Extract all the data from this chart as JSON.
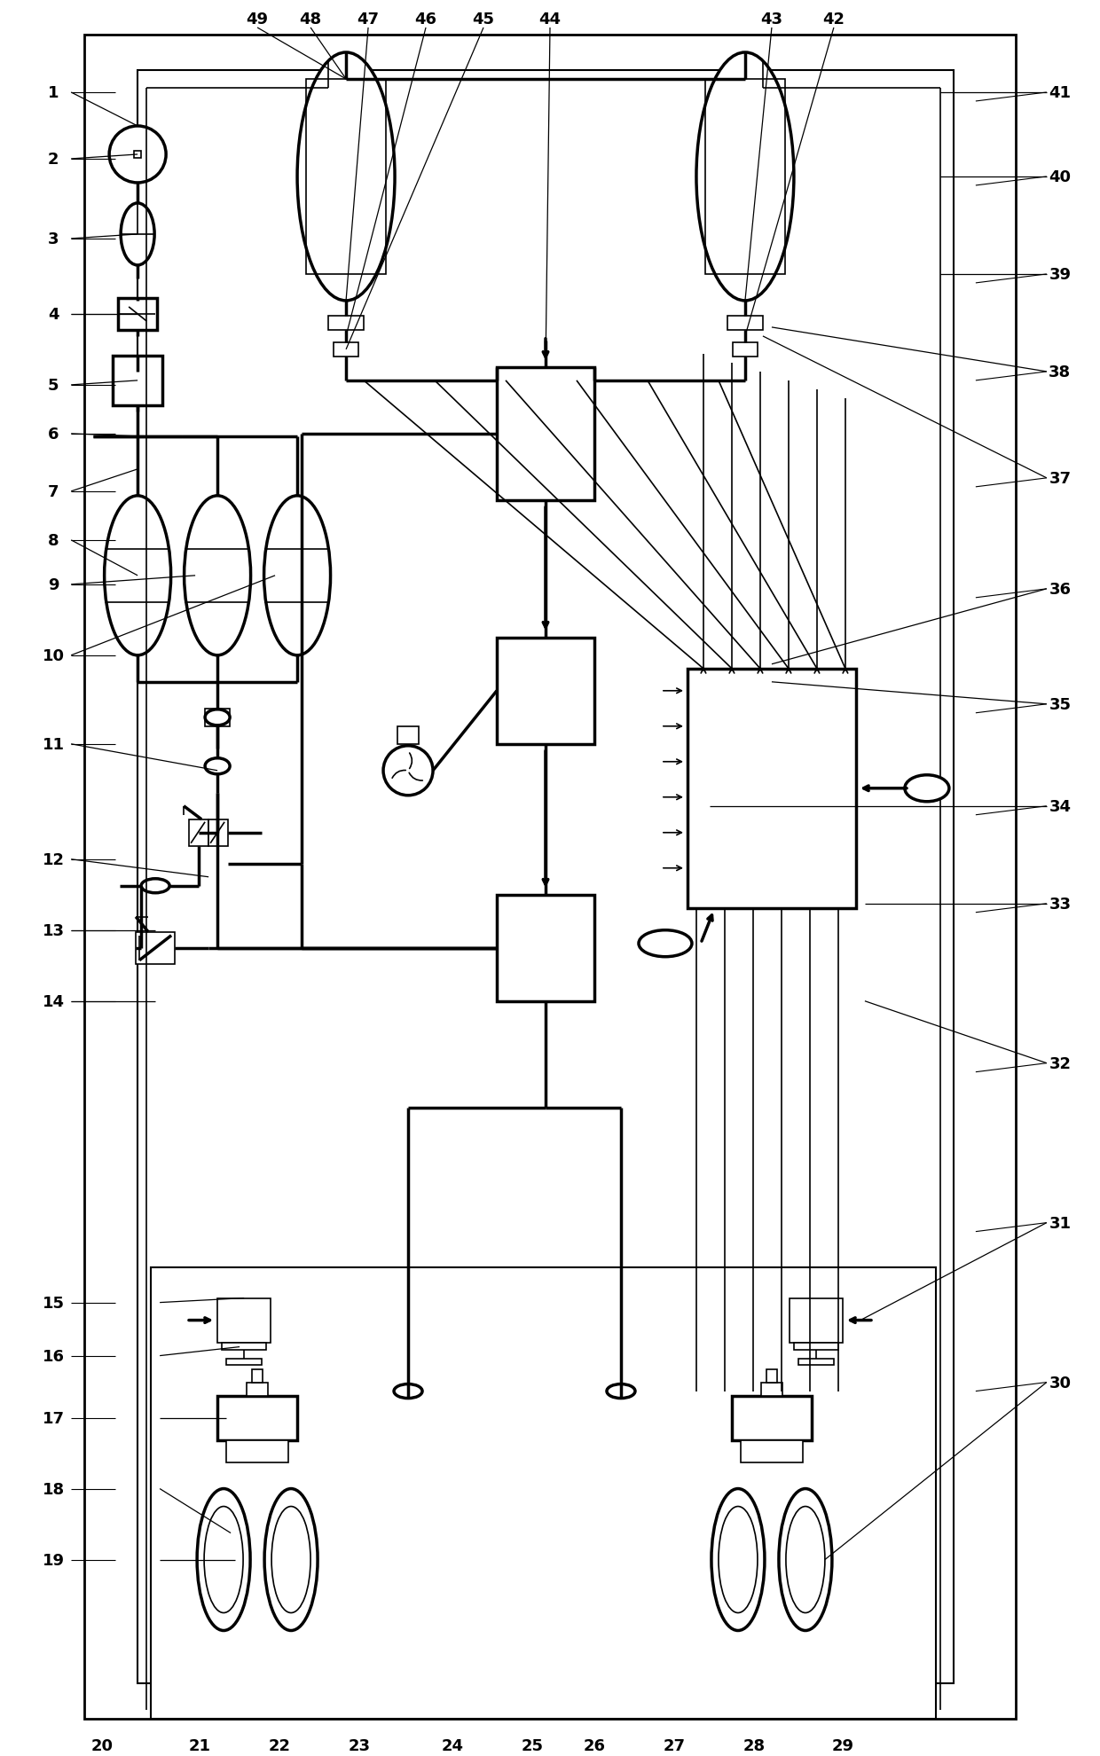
{
  "bg_color": "#ffffff",
  "fig_width": 12.4,
  "fig_height": 19.81,
  "lw_thin": 1.2,
  "lw_med": 2.5,
  "lw_thick": 4.0,
  "label_fontsize": 13
}
